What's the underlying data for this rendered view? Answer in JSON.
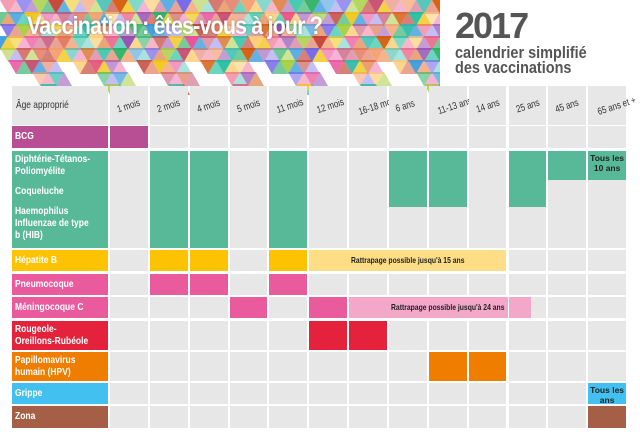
{
  "header": {
    "title": "Vaccination : êtes-vous à jour ?",
    "year": "2017",
    "subtitle_line1": "calendrier simplifié",
    "subtitle_line2": "des vaccinations"
  },
  "table": {
    "corner_label": "Âge approprié",
    "ages": [
      "1 mois",
      "2 mois",
      "4 mois",
      "5 mois",
      "11 mois",
      "12 mois",
      "16-18 mois",
      "6 ans",
      "11-13 ans",
      "14 ans",
      "25 ans",
      "45 ans",
      "65 ans et +"
    ],
    "vaccines": [
      {
        "id": "bcg",
        "labels": [
          "BCG"
        ],
        "color": "#b84f95",
        "doses": {
          "1 mois": "full"
        }
      },
      {
        "id": "dtp",
        "labels": [
          "Diphtérie-Tétanos-Poliomyélite",
          "Coqueluche",
          "Haemophilus Influenzae de type b (HIB)"
        ],
        "color": "#58b999",
        "doses": {
          "2 mois": "dtp-coq-hib",
          "4 mois": "dtp-coq-hib",
          "11 mois": "dtp-coq-hib",
          "6 ans": "dtp-coq",
          "11-13 ans": "dtp-coq",
          "25 ans": "dtp-coq",
          "45 ans": "dtp",
          "65 ans et +": "dtp"
        },
        "note_65": "Tous les 10 ans"
      },
      {
        "id": "hepb",
        "labels": [
          "Hépatite B"
        ],
        "color": "#fdc300",
        "light_color": "#fddd85",
        "doses": {
          "2 mois": "full",
          "4 mois": "full",
          "11 mois": "full",
          "12 mois": "light",
          "16-18 mois": "light",
          "6 ans": "light",
          "11-13 ans": "light",
          "14 ans": "light"
        },
        "catchup": "Rattrapage possible jusqu'à 15 ans"
      },
      {
        "id": "pneumo",
        "labels": [
          "Pneumocoque"
        ],
        "color": "#ea5b9d",
        "doses": {
          "2 mois": "full",
          "4 mois": "full",
          "11 mois": "full"
        }
      },
      {
        "id": "menc",
        "labels": [
          "Méningocoque C"
        ],
        "color": "#ea5b9d",
        "light_color": "#f3a7c9",
        "doses": {
          "5 mois": "full",
          "12 mois": "full",
          "16-18 mois": "light",
          "6 ans": "light",
          "11-13 ans": "light",
          "14 ans": "light",
          "25 ans": "light-half"
        },
        "catchup": "Rattrapage possible jusqu'à 24 ans"
      },
      {
        "id": "ror",
        "labels": [
          "Rougeole-Oreillons-Rubéole"
        ],
        "color": "#e5223b",
        "doses": {
          "12 mois": "full",
          "16-18 mois": "full"
        }
      },
      {
        "id": "hpv",
        "labels": [
          "Papillomavirus humain (HPV)"
        ],
        "color": "#ef7d00",
        "doses": {
          "11-13 ans": "full",
          "14 ans": "full"
        }
      },
      {
        "id": "grippe",
        "labels": [
          "Grippe"
        ],
        "color": "#42c0ef",
        "doses": {
          "65 ans et +": "full"
        },
        "note_65": "Tous les ans"
      },
      {
        "id": "zona",
        "labels": [
          "Zona"
        ],
        "color": "#a65f47",
        "doses": {
          "65 ans et +": "full"
        }
      }
    ]
  }
}
